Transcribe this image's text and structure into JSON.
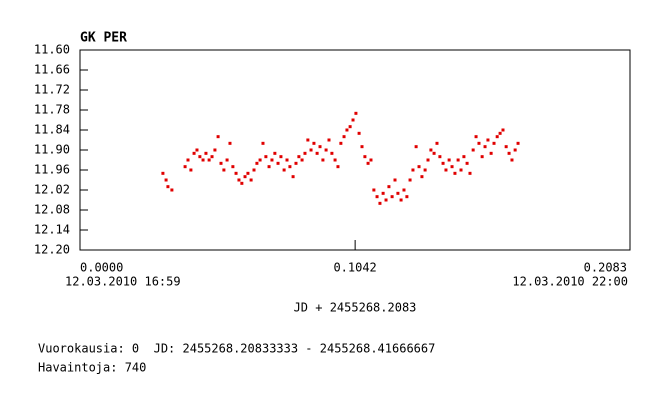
{
  "chart_data": {
    "type": "scatter",
    "title": "GK PER",
    "xlabel": "JD + 2455268.2083",
    "xlim": [
      0,
      0.2083
    ],
    "xticks": [
      {
        "value": 0,
        "label": "0.0000"
      },
      0.1042,
      0.2083
    ],
    "x_date_labels": [
      "12.03.2010 16:59",
      "12.03.2010 22:00"
    ],
    "ylim": [
      11.6,
      12.2
    ],
    "y_inverted": true,
    "yticks": [
      {
        "value": 11.6,
        "label": "11.60"
      },
      11.66,
      11.72,
      11.78,
      11.84,
      {
        "value": 11.9,
        "label": "11.90"
      },
      11.96,
      12.02,
      12.08,
      12.14,
      {
        "value": 12.2,
        "label": "12.20"
      }
    ],
    "color": "#e00000",
    "x": [
      0.0314,
      0.0326,
      0.0333,
      0.0348,
      0.0398,
      0.0409,
      0.042,
      0.0432,
      0.0443,
      0.0454,
      0.0466,
      0.0477,
      0.0489,
      0.05,
      0.0511,
      0.0523,
      0.0534,
      0.0545,
      0.0557,
      0.0568,
      0.0579,
      0.0591,
      0.0602,
      0.0613,
      0.0625,
      0.0636,
      0.0648,
      0.0659,
      0.067,
      0.0682,
      0.0693,
      0.0704,
      0.0716,
      0.0727,
      0.0738,
      0.075,
      0.0761,
      0.0773,
      0.0784,
      0.0795,
      0.0807,
      0.0818,
      0.0829,
      0.0841,
      0.0852,
      0.0863,
      0.0875,
      0.0886,
      0.0898,
      0.0909,
      0.092,
      0.0932,
      0.0943,
      0.0954,
      0.0966,
      0.0977,
      0.0988,
      0.1,
      0.1011,
      0.1023,
      0.1034,
      0.1045,
      0.1057,
      0.1068,
      0.1079,
      0.1091,
      0.1102,
      0.1113,
      0.1125,
      0.1136,
      0.1148,
      0.1159,
      0.117,
      0.1182,
      0.1193,
      0.1204,
      0.1216,
      0.1227,
      0.1238,
      0.125,
      0.1261,
      0.1273,
      0.1284,
      0.1295,
      0.1307,
      0.1318,
      0.1329,
      0.1341,
      0.1352,
      0.1363,
      0.1375,
      0.1386,
      0.1398,
      0.1409,
      0.142,
      0.1432,
      0.1443,
      0.1454,
      0.1466,
      0.1477,
      0.1489,
      0.15,
      0.1511,
      0.1523,
      0.1534,
      0.1545,
      0.1557,
      0.1568,
      0.158,
      0.1591,
      0.1602,
      0.1614,
      0.1625,
      0.1636,
      0.1648,
      0.1659
    ],
    "values": [
      11.97,
      11.99,
      12.01,
      12.02,
      11.95,
      11.93,
      11.96,
      11.91,
      11.9,
      11.92,
      11.93,
      11.91,
      11.93,
      11.92,
      11.9,
      11.86,
      11.94,
      11.96,
      11.93,
      11.88,
      11.95,
      11.97,
      11.99,
      12.0,
      11.98,
      11.97,
      11.99,
      11.96,
      11.94,
      11.93,
      11.88,
      11.92,
      11.95,
      11.93,
      11.91,
      11.94,
      11.92,
      11.96,
      11.93,
      11.95,
      11.98,
      11.94,
      11.92,
      11.93,
      11.91,
      11.87,
      11.9,
      11.88,
      11.91,
      11.89,
      11.93,
      11.9,
      11.87,
      11.91,
      11.93,
      11.95,
      11.88,
      11.86,
      11.84,
      11.83,
      11.81,
      11.79,
      11.85,
      11.89,
      11.92,
      11.94,
      11.93,
      12.02,
      12.04,
      12.06,
      12.03,
      12.05,
      12.01,
      12.04,
      11.99,
      12.03,
      12.05,
      12.02,
      12.04,
      11.99,
      11.96,
      11.89,
      11.95,
      11.98,
      11.96,
      11.93,
      11.9,
      11.91,
      11.88,
      11.92,
      11.94,
      11.96,
      11.93,
      11.95,
      11.97,
      11.93,
      11.96,
      11.92,
      11.94,
      11.97,
      11.9,
      11.86,
      11.88,
      11.92,
      11.89,
      11.87,
      11.91,
      11.88,
      11.86,
      11.85,
      11.84,
      11.89,
      11.91,
      11.93,
      11.9,
      11.88
    ]
  },
  "footer": {
    "line1": "Vuorokausia: 0  JD: 2455268.20833333 - 2455268.41666667",
    "line2": "Havaintoja: 740"
  }
}
